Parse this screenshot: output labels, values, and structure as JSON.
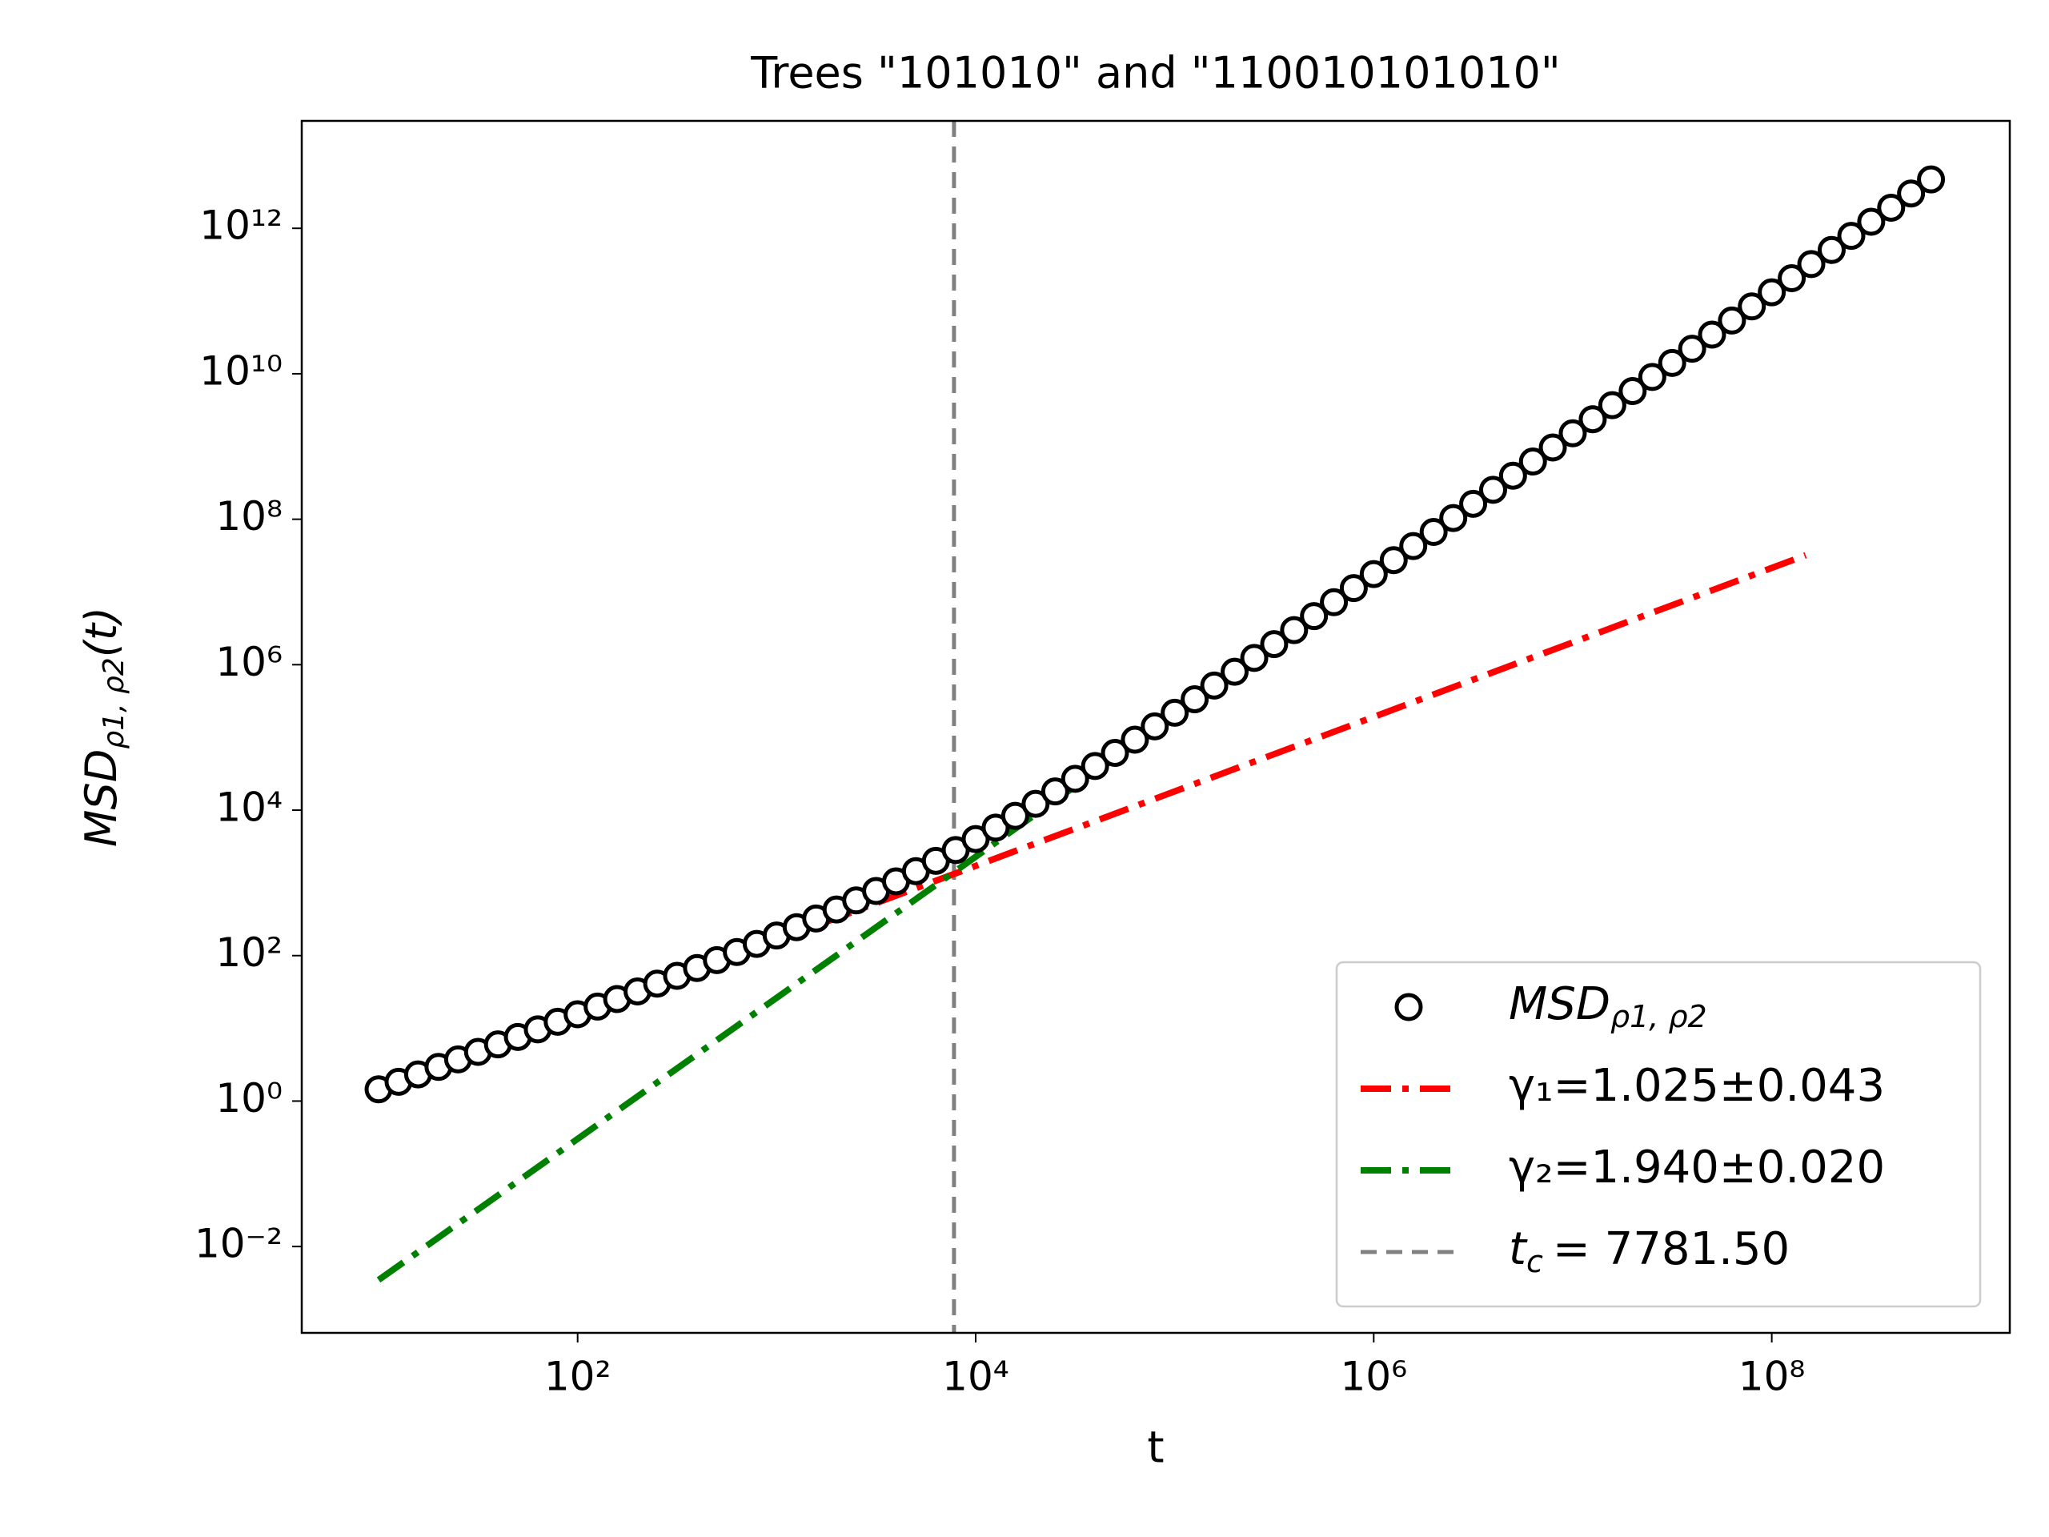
{
  "chart_data": {
    "type": "scatter",
    "title": "Trees \"101010\" and \"110010101010\"",
    "x_label": "t",
    "y_label": "MSD",
    "y_label_sub": "ρ1, ρ2",
    "y_label_suffix": "(t)",
    "xscale": "log",
    "yscale": "log",
    "xlim": [
      4.11,
      1570000000.0
    ],
    "ylim": [
      0.00065,
      30000000000000.0
    ],
    "xticks": [
      {
        "value": 100,
        "label": "10²"
      },
      {
        "value": 10000,
        "label": "10⁴"
      },
      {
        "value": 1000000,
        "label": "10⁶"
      },
      {
        "value": 100000000,
        "label": "10⁸"
      }
    ],
    "yticks": [
      {
        "value": 0.01,
        "label": "10⁻²"
      },
      {
        "value": 1,
        "label": "10⁰"
      },
      {
        "value": 100,
        "label": "10²"
      },
      {
        "value": 10000,
        "label": "10⁴"
      },
      {
        "value": 1000000,
        "label": "10⁶"
      },
      {
        "value": 100000000,
        "label": "10⁸"
      },
      {
        "value": 10000000000,
        "label": "10¹⁰"
      },
      {
        "value": 1000000000000,
        "label": "10¹²"
      }
    ],
    "legend": "lower right",
    "series": [
      {
        "type": "scatter",
        "name": "MSD",
        "name_sub": "ρ1, ρ2",
        "color": "#000000",
        "x": [
          10,
          12.6,
          15.8,
          20,
          25.1,
          31.6,
          39.8,
          50.1,
          63.1,
          79.4,
          100,
          126,
          158,
          200,
          251,
          316,
          398,
          501,
          631,
          794,
          1000,
          1260,
          1580,
          2000,
          2510,
          3160,
          3980,
          5010,
          6310,
          7940,
          10000,
          12600,
          15800,
          20000,
          25100,
          31600,
          39800,
          50100,
          63100,
          79400,
          100000,
          126000,
          158000,
          200000,
          251000,
          316000,
          398000,
          501000,
          631000,
          794000,
          1000000,
          1260000,
          1580000,
          2000000,
          2510000,
          3160000,
          3980000,
          5010000,
          6310000,
          7940000,
          10000000,
          12600000,
          15800000,
          20000000,
          25100000,
          31600000,
          39800000,
          50100000,
          63100000,
          79400000,
          100000000,
          126000000,
          158000000,
          200000000,
          251000000,
          316000000,
          398000000,
          501000000,
          631000000
        ],
        "values": [
          1.45,
          1.84,
          2.33,
          2.95,
          3.74,
          4.74,
          6.01,
          7.62,
          9.67,
          12.3,
          15.6,
          19.9,
          25.3,
          32.2,
          41.2,
          52.7,
          67.5,
          86.8,
          112,
          145,
          189,
          246,
          324,
          430,
          574,
          773,
          1050,
          1450,
          2010,
          2830,
          4010,
          5750,
          8350,
          12200,
          18100,
          27000,
          40500,
          61200,
          93000,
          142000,
          218000,
          335000,
          517000,
          799000,
          1240000,
          1920000,
          2990000,
          4650000,
          7230000,
          11300000,
          17600000,
          27400000,
          42800000,
          66800000,
          104000000,
          163000000,
          254000000,
          397000000,
          621000000,
          970000000,
          1520000000,
          2370000000,
          3700000000,
          5780000000,
          9040000000,
          14100000000,
          22100000000,
          34500000000,
          54000000000,
          84300000000,
          132000000000,
          206000000000,
          322000000000,
          504000000000,
          787000000000,
          1230000000000,
          1920000000000,
          3010000000000,
          4700000000000
        ]
      },
      {
        "type": "line",
        "name": "γ₁=1.025±0.043",
        "color": "#ff0000",
        "dash": "dashdot",
        "x": [
          10,
          148000000
        ],
        "values": [
          1.45,
          32000000
        ]
      },
      {
        "type": "line",
        "name": "γ₂=1.940±0.020",
        "color": "#008000",
        "dash": "dashdot",
        "x": [
          10,
          631000000
        ],
        "values": [
          0.00347,
          4680000000000
        ]
      },
      {
        "type": "vline",
        "name": "t",
        "name_sub": "c",
        "name_suffix": "= 7781.50",
        "color": "#808080",
        "dash": "dashed",
        "x": [
          7781.5
        ]
      }
    ]
  }
}
